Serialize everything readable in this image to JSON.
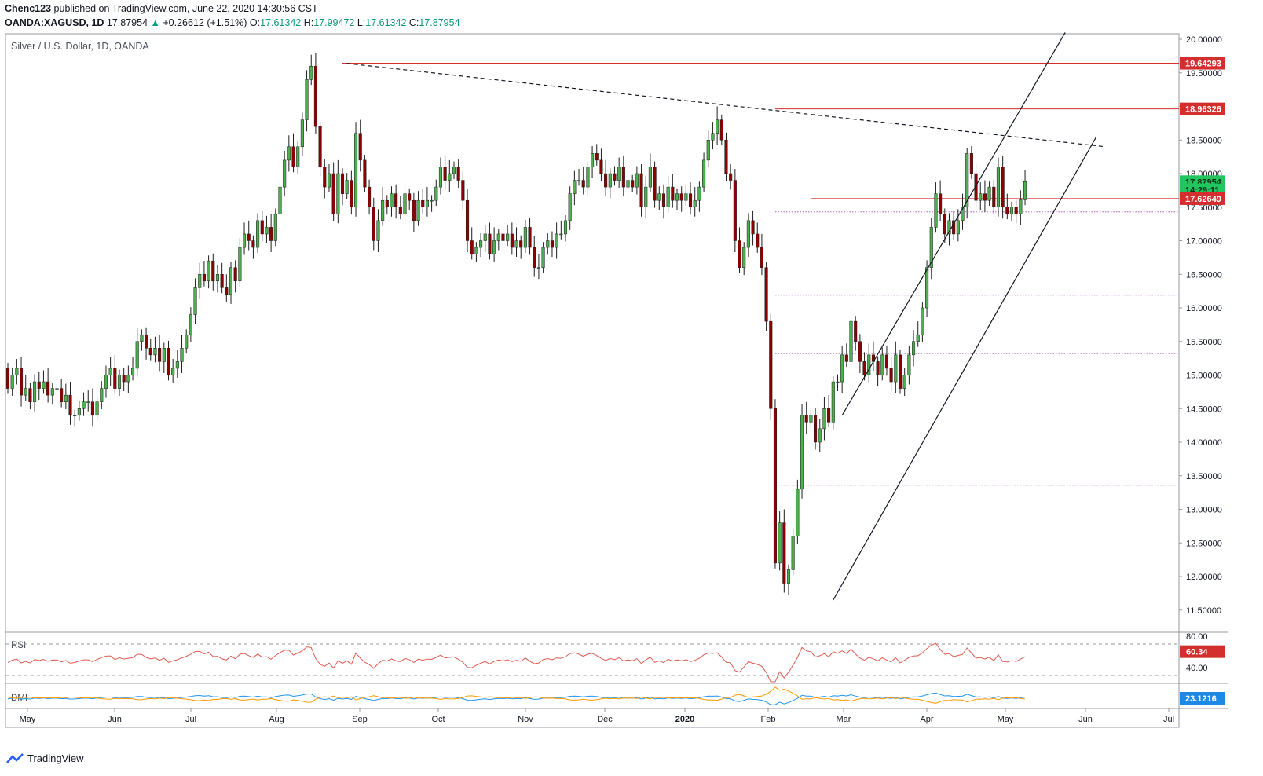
{
  "header": {
    "publisher": "Chenc123",
    "published_text": "published on TradingView.com, June 22, 2020 14:30:56 CST",
    "symbol": "OANDA:XAGUSD, 1D",
    "last": "17.87954",
    "change": "+0.26612 (+1.51%)",
    "open_label": "O:",
    "open": "17.61342",
    "high_label": "H:",
    "high": "17.99472",
    "low_label": "L:",
    "low": "17.61342",
    "close_label": "C:",
    "close": "17.87954"
  },
  "chart_title": "Silver / U.S. Dollar, 1D, OANDA",
  "footer": {
    "brand": "TradingView"
  },
  "colors": {
    "up": "#4caf50",
    "down": "#8b0000",
    "resistance": "#d32f2f",
    "fib": "#b35fc2",
    "rsi": "#e05a4f",
    "dmi_plus": "#2196f3",
    "dmi_minus": "#ff9800"
  },
  "chart_data": {
    "type": "candlestick",
    "price_axis": {
      "range": [
        11.2,
        20.1
      ],
      "ticks": [
        "20.00000",
        "19.50000",
        "19.00000",
        "18.50000",
        "18.00000",
        "17.50000",
        "17.00000",
        "16.50000",
        "16.00000",
        "15.50000",
        "15.00000",
        "14.50000",
        "14.00000",
        "13.50000",
        "13.00000",
        "12.50000",
        "12.00000",
        "11.50000"
      ]
    },
    "time_axis": [
      "May",
      "Jun",
      "Jul",
      "Aug",
      "Sep",
      "Oct",
      "Nov",
      "Dec",
      "2020",
      "Feb",
      "Mar",
      "Apr",
      "May",
      "Jun",
      "Jul"
    ],
    "price_labels": [
      {
        "value": 19.64293,
        "text": "19.64293",
        "color": "#d32f2f"
      },
      {
        "value": 18.96326,
        "text": "18.96326",
        "color": "#d32f2f"
      },
      {
        "value": 17.87954,
        "text": "17.87954",
        "color": "#22c55e"
      },
      {
        "value": 17.76,
        "text": "14:29:11",
        "color": "#22c55e"
      },
      {
        "value": 17.62649,
        "text": "17.62649",
        "color": "#d32f2f"
      }
    ],
    "horizontal_lines": [
      {
        "value": 19.64293,
        "from_index": 75,
        "style": "solid",
        "color": "#d32f2f"
      },
      {
        "value": 18.96326,
        "from_index": 172,
        "style": "solid",
        "color": "#d32f2f"
      },
      {
        "value": 17.62649,
        "from_index": 180,
        "style": "solid",
        "color": "#d32f2f"
      },
      {
        "value": 17.43,
        "from_index": 172,
        "style": "dotted",
        "color": "#b35fc2"
      },
      {
        "value": 16.19,
        "from_index": 172,
        "style": "dotted",
        "color": "#b35fc2"
      },
      {
        "value": 15.32,
        "from_index": 172,
        "style": "dotted",
        "color": "#b35fc2"
      },
      {
        "value": 14.45,
        "from_index": 172,
        "style": "dotted",
        "color": "#b35fc2"
      },
      {
        "value": 13.36,
        "from_index": 172,
        "style": "dotted",
        "color": "#b35fc2"
      }
    ],
    "trendlines": [
      {
        "from": [
          76,
          19.64
        ],
        "to": [
          246,
          18.4
        ],
        "style": "dashed"
      },
      {
        "from": [
          185,
          11.65
        ],
        "to": [
          244,
          18.55
        ],
        "style": "solid"
      },
      {
        "from": [
          187,
          14.4
        ],
        "to": [
          237,
          20.1
        ],
        "style": "solid"
      }
    ],
    "candles": [
      [
        15.1,
        14.8
      ],
      [
        14.8,
        15
      ],
      [
        15,
        15.1
      ],
      [
        15.1,
        14.7
      ],
      [
        14.7,
        14.8
      ],
      [
        14.8,
        14.6
      ],
      [
        14.6,
        14.9
      ],
      [
        14.9,
        14.8
      ],
      [
        14.8,
        14.9
      ],
      [
        14.9,
        14.7
      ],
      [
        14.7,
        14.8
      ],
      [
        14.8,
        14.8
      ],
      [
        14.8,
        14.6
      ],
      [
        14.6,
        14.7
      ],
      [
        14.7,
        14.4
      ],
      [
        14.4,
        14.4
      ],
      [
        14.4,
        14.5
      ],
      [
        14.5,
        14.6
      ],
      [
        14.6,
        14.6
      ],
      [
        14.6,
        14.4
      ],
      [
        14.4,
        14.6
      ],
      [
        14.6,
        14.8
      ],
      [
        14.8,
        15
      ],
      [
        15,
        15.1
      ],
      [
        15.1,
        14.8
      ],
      [
        14.8,
        15
      ],
      [
        15,
        14.9
      ],
      [
        14.9,
        15
      ],
      [
        15,
        15.1
      ],
      [
        15.1,
        15.5
      ],
      [
        15.5,
        15.6
      ],
      [
        15.6,
        15.4
      ],
      [
        15.4,
        15.3
      ],
      [
        15.3,
        15.4
      ],
      [
        15.4,
        15.2
      ],
      [
        15.2,
        15.4
      ],
      [
        15.4,
        15
      ],
      [
        15,
        15.1
      ],
      [
        15.1,
        15.2
      ],
      [
        15.2,
        15.4
      ],
      [
        15.4,
        15.6
      ],
      [
        15.6,
        15.9
      ],
      [
        15.9,
        16.3
      ],
      [
        16.3,
        16.5
      ],
      [
        16.5,
        16.4
      ],
      [
        16.4,
        16.7
      ],
      [
        16.7,
        16.4
      ],
      [
        16.4,
        16.5
      ],
      [
        16.5,
        16.3
      ],
      [
        16.3,
        16.2
      ],
      [
        16.2,
        16.6
      ],
      [
        16.6,
        16.4
      ],
      [
        16.4,
        16.9
      ],
      [
        16.9,
        17.1
      ],
      [
        17.1,
        17
      ],
      [
        17,
        16.9
      ],
      [
        16.9,
        17.3
      ],
      [
        17.3,
        17.1
      ],
      [
        17.1,
        17.2
      ],
      [
        17.2,
        17
      ],
      [
        17,
        17.4
      ],
      [
        17.4,
        17.8
      ],
      [
        17.8,
        18.2
      ],
      [
        18.2,
        18.4
      ],
      [
        18.4,
        18.1
      ],
      [
        18.1,
        18.4
      ],
      [
        18.4,
        18.8
      ],
      [
        18.8,
        19.4
      ],
      [
        19.4,
        19.6
      ],
      [
        19.6,
        18.7
      ],
      [
        18.7,
        18.1
      ],
      [
        18.1,
        17.8
      ],
      [
        17.8,
        18.0
      ],
      [
        18,
        17.4
      ],
      [
        17.4,
        18.0
      ],
      [
        18,
        17.7
      ],
      [
        17.7,
        17.9
      ],
      [
        17.9,
        17.5
      ],
      [
        17.5,
        18.6
      ],
      [
        18.6,
        18.2
      ],
      [
        18.2,
        17.8
      ],
      [
        17.8,
        17.5
      ],
      [
        17.5,
        17.0
      ],
      [
        17,
        17.3
      ],
      [
        17.3,
        17.6
      ],
      [
        17.6,
        17.5
      ],
      [
        17.5,
        17.7
      ],
      [
        17.7,
        17.5
      ],
      [
        17.5,
        17.4
      ],
      [
        17.4,
        17.7
      ],
      [
        17.7,
        17.6
      ],
      [
        17.6,
        17.3
      ],
      [
        17.3,
        17.6
      ],
      [
        17.6,
        17.5
      ],
      [
        17.5,
        17.6
      ],
      [
        17.6,
        17.6
      ],
      [
        17.6,
        17.8
      ],
      [
        17.8,
        18.1
      ],
      [
        18.1,
        17.9
      ],
      [
        17.9,
        18.0
      ],
      [
        18,
        18.1
      ],
      [
        18.1,
        17.9
      ],
      [
        17.9,
        17.6
      ],
      [
        17.6,
        17.0
      ],
      [
        17,
        16.8
      ],
      [
        16.8,
        16.9
      ],
      [
        16.9,
        17.0
      ],
      [
        17,
        17.1
      ],
      [
        17.1,
        16.8
      ],
      [
        16.8,
        17.0
      ],
      [
        17,
        17.1
      ],
      [
        17.1,
        17.0
      ],
      [
        17,
        17.1
      ],
      [
        17.1,
        16.9
      ],
      [
        16.9,
        17.0
      ],
      [
        17,
        16.9
      ],
      [
        16.9,
        17.2
      ],
      [
        17.2,
        16.9
      ],
      [
        16.9,
        16.6
      ],
      [
        16.6,
        16.6
      ],
      [
        16.6,
        16.9
      ],
      [
        16.9,
        17.0
      ],
      [
        17,
        16.9
      ],
      [
        16.9,
        17.1
      ],
      [
        17.1,
        17.1
      ],
      [
        17.1,
        17.3
      ],
      [
        17.3,
        17.7
      ],
      [
        17.7,
        17.9
      ],
      [
        17.9,
        17.9
      ],
      [
        17.9,
        17.8
      ],
      [
        17.8,
        18.1
      ],
      [
        18.1,
        18.3
      ],
      [
        18.3,
        18.2
      ],
      [
        18.2,
        18.0
      ],
      [
        18,
        17.8
      ],
      [
        17.8,
        18.0
      ],
      [
        18,
        17.9
      ],
      [
        17.9,
        18.1
      ],
      [
        18.1,
        17.8
      ],
      [
        17.8,
        17.9
      ],
      [
        17.9,
        17.8
      ],
      [
        17.8,
        18.0
      ],
      [
        18,
        17.5
      ],
      [
        17.5,
        17.8
      ],
      [
        17.8,
        18.1
      ],
      [
        18.1,
        17.6
      ],
      [
        17.6,
        17.7
      ],
      [
        17.7,
        17.5
      ],
      [
        17.5,
        17.8
      ],
      [
        17.8,
        17.6
      ],
      [
        17.6,
        17.7
      ],
      [
        17.7,
        17.6
      ],
      [
        17.6,
        17.7
      ],
      [
        17.7,
        17.5
      ],
      [
        17.5,
        17.6
      ],
      [
        17.6,
        17.8
      ],
      [
        17.8,
        18.2
      ],
      [
        18.2,
        18.5
      ],
      [
        18.5,
        18.6
      ],
      [
        18.6,
        18.8
      ],
      [
        18.8,
        18.5
      ],
      [
        18.5,
        18.0
      ],
      [
        18,
        17.9
      ],
      [
        17.9,
        17.0
      ],
      [
        17,
        16.6
      ],
      [
        16.6,
        16.9
      ],
      [
        16.9,
        17.3
      ],
      [
        17.3,
        17.1
      ],
      [
        17.1,
        16.9
      ],
      [
        16.9,
        16.6
      ],
      [
        16.6,
        15.8
      ],
      [
        15.8,
        14.5
      ],
      [
        14.5,
        12.2
      ],
      [
        12.2,
        12.8
      ],
      [
        12.8,
        11.9
      ],
      [
        11.9,
        12.1
      ],
      [
        12.1,
        12.6
      ],
      [
        12.6,
        13.3
      ],
      [
        13.3,
        14.4
      ],
      [
        14.4,
        14.3
      ],
      [
        14.3,
        14.4
      ],
      [
        14.4,
        14.0
      ],
      [
        14,
        14.2
      ],
      [
        14.2,
        14.5
      ],
      [
        14.5,
        14.3
      ],
      [
        14.3,
        14.9
      ],
      [
        14.9,
        14.9
      ],
      [
        14.9,
        15.3
      ],
      [
        15.3,
        15.2
      ],
      [
        15.2,
        15.8
      ],
      [
        15.8,
        15.5
      ],
      [
        15.5,
        15.2
      ],
      [
        15.2,
        15
      ],
      [
        15,
        15.3
      ],
      [
        15.3,
        15.2
      ],
      [
        15.2,
        15.0
      ],
      [
        15,
        15.3
      ],
      [
        15.3,
        15.1
      ],
      [
        15.1,
        14.9
      ],
      [
        14.9,
        15.3
      ],
      [
        15.3,
        14.8
      ],
      [
        14.8,
        15.0
      ],
      [
        15,
        15.3
      ],
      [
        15.3,
        15.5
      ],
      [
        15.5,
        15.6
      ],
      [
        15.6,
        16.0
      ],
      [
        16,
        16.6
      ],
      [
        16.6,
        17.2
      ],
      [
        17.2,
        17.7
      ],
      [
        17.7,
        17.4
      ],
      [
        17.4,
        17.1
      ],
      [
        17.1,
        17.3
      ],
      [
        17.3,
        17.1
      ],
      [
        17.1,
        17.3
      ],
      [
        17.3,
        17.5
      ],
      [
        17.5,
        18.3
      ],
      [
        18.3,
        18.0
      ],
      [
        18,
        17.6
      ],
      [
        17.6,
        17.7
      ],
      [
        17.7,
        17.6
      ],
      [
        17.6,
        17.8
      ],
      [
        17.8,
        17.5
      ],
      [
        17.5,
        18.1
      ],
      [
        18.1,
        17.5
      ],
      [
        17.5,
        17.4
      ],
      [
        17.4,
        17.5
      ],
      [
        17.5,
        17.4
      ],
      [
        17.4,
        17.61
      ],
      [
        17.61,
        17.88
      ]
    ],
    "rsi": {
      "label": "RSI",
      "value_label": "60.34",
      "range": [
        20,
        85
      ],
      "ticks": [
        "80.00",
        "40.00"
      ],
      "levels": [
        70,
        30
      ]
    },
    "dmi": {
      "label": "DMI",
      "value_label": "23.1216"
    }
  }
}
